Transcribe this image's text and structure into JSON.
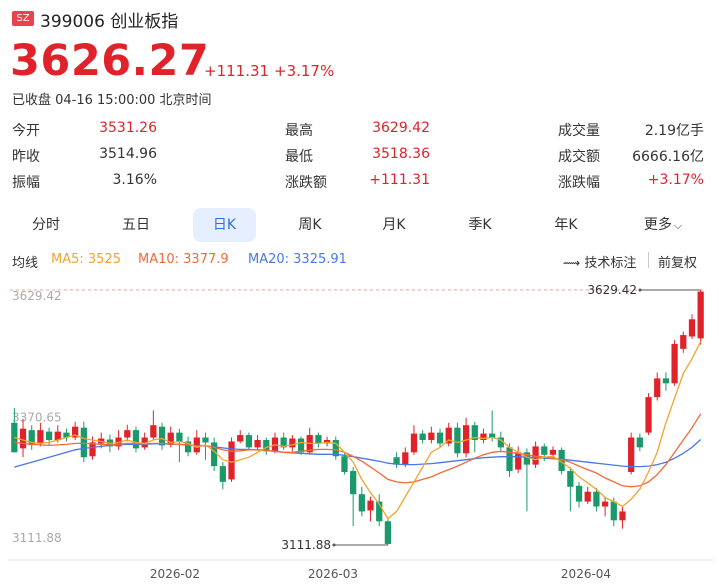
{
  "header": {
    "exchange_badge": "SZ",
    "code": "399006",
    "name": "创业板指",
    "price": "3626.27",
    "change": "+111.31",
    "change_pct": "+3.17%",
    "status": "已收盘 04-16 15:00:00 北京时间"
  },
  "stats": [
    {
      "label": "今开",
      "value": "3531.26",
      "color": "red"
    },
    {
      "label": "昨收",
      "value": "3514.96",
      "color": "neutral"
    },
    {
      "label": "振幅",
      "value": "3.16%",
      "color": "neutral"
    },
    {
      "label": "最高",
      "value": "3629.42",
      "color": "red"
    },
    {
      "label": "最低",
      "value": "3518.36",
      "color": "red"
    },
    {
      "label": "涨跌额",
      "value": "+111.31",
      "color": "red"
    },
    {
      "label": "成交量",
      "value": "2.19亿手",
      "color": "neutral"
    },
    {
      "label": "成交额",
      "value": "6666.16亿",
      "color": "neutral"
    },
    {
      "label": "涨跌幅",
      "value": "+3.17%",
      "color": "red"
    }
  ],
  "tabs": [
    "分时",
    "五日",
    "日K",
    "周K",
    "月K",
    "季K",
    "年K",
    "更多"
  ],
  "active_tab": "日K",
  "ma_bar": {
    "label": "均线",
    "ma5": "MA5: 3525",
    "ma10": "MA10: 3377.9",
    "ma20": "MA20: 3325.91",
    "tool_label": "技术标注",
    "adjust_label": "前复权"
  },
  "colors": {
    "up": "#e0232a",
    "down": "#1a9a6a",
    "ma5": "#f2a42d",
    "ma10": "#f26a3a",
    "ma20": "#4a78e8",
    "accent": "#2f6fdf"
  },
  "chart_data": {
    "type": "candlestick",
    "y_axis_labels": [
      "3629.42",
      "3370.65",
      "3111.88"
    ],
    "x_axis_labels": [
      "2026-02",
      "2026-03",
      "2026-04"
    ],
    "high_marker": "3629.42",
    "low_marker": "3111.88",
    "ylim": [
      3111.88,
      3629.42
    ],
    "candles": [
      [
        3360,
        3300,
        3390,
        3300
      ],
      [
        3308,
        3348,
        3368,
        3290
      ],
      [
        3345,
        3315,
        3355,
        3305
      ],
      [
        3318,
        3345,
        3360,
        3312
      ],
      [
        3342,
        3325,
        3350,
        3315
      ],
      [
        3325,
        3342,
        3355,
        3320
      ],
      [
        3340,
        3330,
        3348,
        3322
      ],
      [
        3330,
        3352,
        3362,
        3325
      ],
      [
        3350,
        3290,
        3362,
        3280
      ],
      [
        3292,
        3320,
        3332,
        3285
      ],
      [
        3318,
        3328,
        3340,
        3308
      ],
      [
        3326,
        3312,
        3336,
        3300
      ],
      [
        3312,
        3330,
        3345,
        3305
      ],
      [
        3330,
        3345,
        3356,
        3322
      ],
      [
        3345,
        3308,
        3352,
        3300
      ],
      [
        3310,
        3330,
        3340,
        3305
      ],
      [
        3330,
        3355,
        3385,
        3325
      ],
      [
        3352,
        3314,
        3360,
        3305
      ],
      [
        3315,
        3340,
        3352,
        3310
      ],
      [
        3340,
        3322,
        3348,
        3280
      ],
      [
        3322,
        3300,
        3332,
        3292
      ],
      [
        3300,
        3330,
        3345,
        3295
      ],
      [
        3330,
        3320,
        3340,
        3285
      ],
      [
        3320,
        3272,
        3330,
        3262
      ],
      [
        3272,
        3240,
        3280,
        3225
      ],
      [
        3245,
        3322,
        3330,
        3240
      ],
      [
        3322,
        3335,
        3345,
        3318
      ],
      [
        3335,
        3310,
        3340,
        3305
      ],
      [
        3310,
        3325,
        3335,
        3305
      ],
      [
        3325,
        3302,
        3330,
        3295
      ],
      [
        3302,
        3330,
        3340,
        3298
      ],
      [
        3330,
        3310,
        3340,
        3305
      ],
      [
        3310,
        3328,
        3335,
        3302
      ],
      [
        3328,
        3300,
        3332,
        3295
      ],
      [
        3300,
        3335,
        3350,
        3295
      ],
      [
        3335,
        3318,
        3340,
        3310
      ],
      [
        3318,
        3325,
        3332,
        3312
      ],
      [
        3325,
        3292,
        3332,
        3285
      ],
      [
        3292,
        3260,
        3298,
        3255
      ],
      [
        3262,
        3215,
        3270,
        3150
      ],
      [
        3215,
        3180,
        3230,
        3170
      ],
      [
        3182,
        3202,
        3210,
        3160
      ],
      [
        3200,
        3160,
        3215,
        3150
      ],
      [
        3160,
        3114,
        3168,
        3111.88
      ],
      [
        3290,
        3275,
        3300,
        3268
      ],
      [
        3275,
        3300,
        3310,
        3270
      ],
      [
        3300,
        3338,
        3355,
        3295
      ],
      [
        3338,
        3325,
        3345,
        3318
      ],
      [
        3325,
        3340,
        3352,
        3318
      ],
      [
        3340,
        3318,
        3348,
        3310
      ],
      [
        3318,
        3350,
        3360,
        3312
      ],
      [
        3350,
        3298,
        3360,
        3290
      ],
      [
        3298,
        3355,
        3370,
        3290
      ],
      [
        3355,
        3325,
        3362,
        3300
      ],
      [
        3325,
        3338,
        3348,
        3318
      ],
      [
        3338,
        3330,
        3385,
        3322
      ],
      [
        3330,
        3310,
        3342,
        3300
      ],
      [
        3310,
        3262,
        3318,
        3250
      ],
      [
        3265,
        3300,
        3312,
        3258
      ],
      [
        3300,
        3275,
        3308,
        3180
      ],
      [
        3275,
        3312,
        3322,
        3268
      ],
      [
        3312,
        3295,
        3318,
        3282
      ],
      [
        3295,
        3305,
        3312,
        3288
      ],
      [
        3305,
        3262,
        3310,
        3255
      ],
      [
        3262,
        3230,
        3270,
        3180
      ],
      [
        3232,
        3200,
        3240,
        3188
      ],
      [
        3200,
        3220,
        3230,
        3195
      ],
      [
        3220,
        3190,
        3228,
        3180
      ],
      [
        3190,
        3200,
        3210,
        3170
      ],
      [
        3200,
        3162,
        3208,
        3150
      ],
      [
        3162,
        3180,
        3190,
        3145
      ],
      [
        3260,
        3330,
        3340,
        3255
      ],
      [
        3330,
        3310,
        3338,
        3302
      ],
      [
        3340,
        3412,
        3420,
        3335
      ],
      [
        3412,
        3450,
        3462,
        3405
      ],
      [
        3450,
        3440,
        3462,
        3425
      ],
      [
        3440,
        3520,
        3528,
        3435
      ],
      [
        3510,
        3538,
        3545,
        3502
      ],
      [
        3535,
        3570,
        3580,
        3530
      ],
      [
        3531.26,
        3626.27,
        3629.42,
        3518.36
      ]
    ],
    "ma5": [
      3330,
      3325,
      3320,
      3318,
      3320,
      3325,
      3330,
      3335,
      3328,
      3325,
      3322,
      3318,
      3320,
      3325,
      3320,
      3318,
      3325,
      3328,
      3320,
      3322,
      3318,
      3310,
      3315,
      3302,
      3285,
      3280,
      3285,
      3290,
      3300,
      3310,
      3315,
      3312,
      3315,
      3320,
      3318,
      3318,
      3320,
      3318,
      3300,
      3280,
      3245,
      3218,
      3195,
      3165,
      3180,
      3210,
      3240,
      3270,
      3300,
      3310,
      3325,
      3320,
      3325,
      3330,
      3328,
      3330,
      3325,
      3310,
      3300,
      3290,
      3285,
      3290,
      3292,
      3280,
      3268,
      3250,
      3238,
      3225,
      3208,
      3200,
      3190,
      3205,
      3225,
      3260,
      3300,
      3360,
      3410,
      3460,
      3490,
      3525
    ],
    "ma10": [
      3320,
      3318,
      3316,
      3315,
      3314,
      3315,
      3316,
      3318,
      3318,
      3317,
      3316,
      3315,
      3316,
      3318,
      3318,
      3317,
      3318,
      3318,
      3317,
      3316,
      3315,
      3313,
      3314,
      3310,
      3305,
      3302,
      3303,
      3305,
      3305,
      3304,
      3302,
      3300,
      3300,
      3302,
      3304,
      3306,
      3306,
      3305,
      3300,
      3292,
      3282,
      3270,
      3258,
      3245,
      3240,
      3238,
      3240,
      3245,
      3250,
      3258,
      3265,
      3272,
      3280,
      3288,
      3295,
      3300,
      3302,
      3300,
      3298,
      3295,
      3292,
      3290,
      3288,
      3285,
      3280,
      3272,
      3265,
      3258,
      3248,
      3240,
      3232,
      3230,
      3232,
      3240,
      3255,
      3275,
      3300,
      3325,
      3350,
      3377.9
    ],
    "ma20": [
      3270,
      3275,
      3280,
      3285,
      3290,
      3295,
      3300,
      3305,
      3308,
      3310,
      3312,
      3314,
      3315,
      3316,
      3316,
      3316,
      3317,
      3317,
      3317,
      3316,
      3315,
      3313,
      3313,
      3311,
      3309,
      3307,
      3306,
      3306,
      3305,
      3304,
      3302,
      3300,
      3299,
      3298,
      3297,
      3296,
      3296,
      3296,
      3294,
      3291,
      3288,
      3285,
      3282,
      3278,
      3276,
      3275,
      3275,
      3276,
      3277,
      3279,
      3281,
      3283,
      3285,
      3287,
      3289,
      3290,
      3291,
      3291,
      3291,
      3290,
      3289,
      3288,
      3287,
      3286,
      3284,
      3282,
      3280,
      3278,
      3276,
      3274,
      3272,
      3271,
      3271,
      3272,
      3275,
      3280,
      3288,
      3298,
      3310,
      3325.91
    ]
  }
}
